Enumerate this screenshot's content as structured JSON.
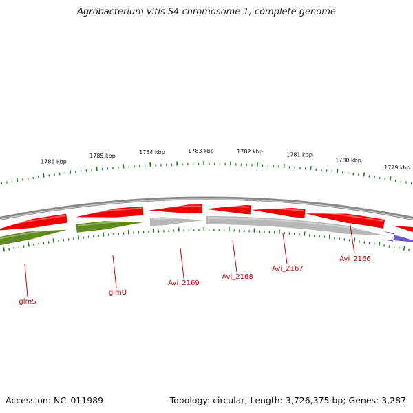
{
  "title": "Agrobacterium vitis S4 chromosome 1, complete genome",
  "accession_text": "Accession: NC_011989",
  "summary_text": "Topology: circular; Length: 3,726,375 bp; Genes: 3,287",
  "ruler": {
    "labels": [
      "1786 kbp",
      "1785 kbp",
      "1784 kbp",
      "1783 kbp",
      "1782 kbp",
      "1781 kbp",
      "1780 kbp",
      "1779 kbp"
    ]
  },
  "gene_labels": [
    "glmS",
    "glmU",
    "Avi_2169",
    "Avi_2168",
    "Avi_2167",
    "Avi_2166"
  ],
  "colors": {
    "forward_strand_gene": "#ee0000",
    "reverse_strand_green": "#5f8a1e",
    "reverse_strand_gray": "#b8b8b8",
    "reverse_strand_blue": "#6a5acd",
    "backbone": "#888888",
    "tick": "#1a7a1a",
    "label": "#cc0000"
  }
}
